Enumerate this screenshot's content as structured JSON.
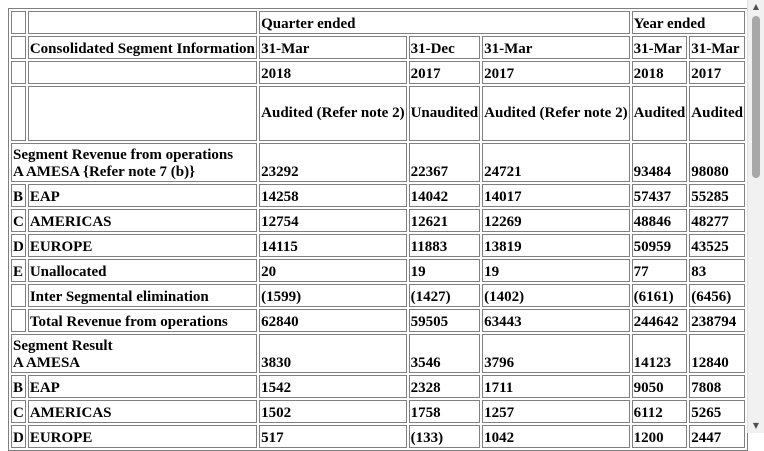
{
  "header": {
    "title": "Consolidated Segment Information",
    "quarter_ended": "Quarter ended",
    "year_ended": "Year ended",
    "dates": [
      "31-Mar",
      "31-Dec",
      "31-Mar",
      "31-Mar",
      "31-Mar"
    ],
    "years": [
      "2018",
      "2017",
      "2017",
      "2018",
      "2017"
    ],
    "status": [
      "Audited (Refer note 2)",
      "Unaudited",
      "Audited (Refer note 2)",
      "Audited",
      "Audited"
    ]
  },
  "revenue": {
    "section_title": "Segment Revenue from operations",
    "rows": [
      {
        "code": "A",
        "label": "AMESA {Refer note 7 (b)}",
        "values": [
          "23292",
          "22367",
          "24721",
          "93484",
          "98080"
        ]
      },
      {
        "code": "B",
        "label": "EAP",
        "values": [
          "14258",
          "14042",
          "14017",
          "57437",
          "55285"
        ]
      },
      {
        "code": "C",
        "label": "AMERICAS",
        "values": [
          "12754",
          "12621",
          "12269",
          "48846",
          "48277"
        ]
      },
      {
        "code": "D",
        "label": "EUROPE",
        "values": [
          "14115",
          "11883",
          "13819",
          "50959",
          "43525"
        ]
      },
      {
        "code": "E",
        "label": "Unallocated",
        "values": [
          "20",
          "19",
          "19",
          "77",
          "83"
        ]
      },
      {
        "code": "",
        "label": "Inter Segmental elimination",
        "values": [
          "(1599)",
          "(1427)",
          "(1402)",
          "(6161)",
          "(6456)"
        ]
      },
      {
        "code": "",
        "label": "Total Revenue from operations",
        "values": [
          "62840",
          "59505",
          "63443",
          "244642",
          "238794"
        ]
      }
    ]
  },
  "result": {
    "section_title": "Segment Result",
    "rows": [
      {
        "code": "A",
        "label": "AMESA",
        "values": [
          "3830",
          "3546",
          "3796",
          "14123",
          "12840"
        ]
      },
      {
        "code": "B",
        "label": "EAP",
        "values": [
          "1542",
          "2328",
          "1711",
          "9050",
          "7808"
        ]
      },
      {
        "code": "C",
        "label": "AMERICAS",
        "values": [
          "1502",
          "1758",
          "1257",
          "6112",
          "5265"
        ]
      },
      {
        "code": "D",
        "label": "EUROPE",
        "values": [
          "517",
          "(133)",
          "1042",
          "1200",
          "2447"
        ]
      }
    ]
  }
}
